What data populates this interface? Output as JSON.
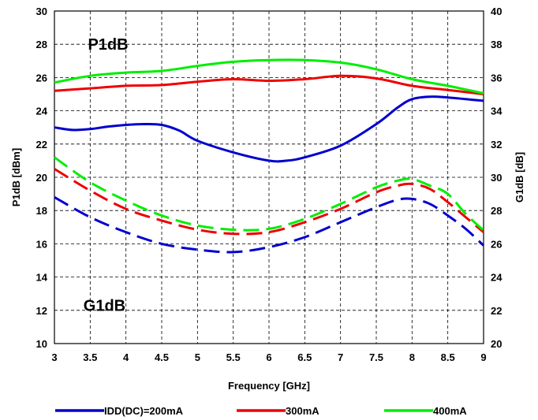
{
  "chart_data": {
    "type": "line",
    "xlabel": "Frequency  [GHz]",
    "ylabel": "P1dB  [dBm]",
    "y2label": "G1dB  [dB]",
    "xlim": [
      3,
      9
    ],
    "ylim": [
      10,
      30
    ],
    "y2lim": [
      20,
      40
    ],
    "grid": true,
    "legend_placement": "bottom",
    "x_ticks": [
      "3",
      "3.5",
      "4",
      "4.5",
      "5",
      "5.5",
      "6",
      "6.5",
      "7",
      "7.5",
      "8",
      "8.5",
      "9"
    ],
    "y_ticks": [
      "10",
      "12",
      "14",
      "16",
      "18",
      "20",
      "22",
      "24",
      "26",
      "28",
      "30"
    ],
    "y2_ticks": [
      "20",
      "22",
      "24",
      "26",
      "28",
      "30",
      "32",
      "34",
      "36",
      "38",
      "40"
    ],
    "annotations": [
      {
        "text": "P1dB",
        "x": 3.75,
        "y": 28.0
      },
      {
        "text": "G1dB",
        "x": 3.7,
        "y": 12.3
      }
    ],
    "legend": [
      {
        "label": "IDD(DC)=200mA",
        "color": "#0000cc"
      },
      {
        "label": "300mA",
        "color": "#ee0000"
      },
      {
        "label": "400mA",
        "color": "#00ee00"
      }
    ],
    "series": [
      {
        "group": "P1dB",
        "axis": "left",
        "style": "solid",
        "color": "#0000cc",
        "x": [
          3,
          3.25,
          3.5,
          3.75,
          4,
          4.25,
          4.5,
          4.75,
          5,
          5.5,
          6,
          6.25,
          6.5,
          7,
          7.5,
          7.8,
          8,
          8.25,
          8.5,
          8.75,
          9
        ],
        "y": [
          23.0,
          22.85,
          22.9,
          23.05,
          23.15,
          23.2,
          23.15,
          22.8,
          22.2,
          21.5,
          21.0,
          21.0,
          21.2,
          21.9,
          23.2,
          24.2,
          24.7,
          24.85,
          24.8,
          24.7,
          24.6
        ]
      },
      {
        "group": "P1dB",
        "axis": "left",
        "style": "solid",
        "color": "#ee0000",
        "x": [
          3,
          3.5,
          4,
          4.5,
          5,
          5.5,
          6,
          6.5,
          7,
          7.5,
          8,
          8.5,
          9
        ],
        "y": [
          25.2,
          25.35,
          25.5,
          25.55,
          25.75,
          25.9,
          25.8,
          25.9,
          26.1,
          25.95,
          25.5,
          25.25,
          25.0
        ]
      },
      {
        "group": "P1dB",
        "axis": "left",
        "style": "solid",
        "color": "#00ee00",
        "x": [
          3,
          3.5,
          4,
          4.5,
          5,
          5.5,
          6,
          6.5,
          7,
          7.5,
          8,
          8.5,
          9
        ],
        "y": [
          25.7,
          26.1,
          26.3,
          26.4,
          26.7,
          26.95,
          27.05,
          27.05,
          26.9,
          26.5,
          25.9,
          25.5,
          25.05
        ]
      },
      {
        "group": "G1dB",
        "axis": "right",
        "style": "dashed",
        "color": "#0000cc",
        "x": [
          3,
          3.5,
          4,
          4.5,
          5,
          5.5,
          6,
          6.5,
          7,
          7.5,
          7.8,
          8,
          8.25,
          8.5,
          8.75,
          9
        ],
        "y": [
          28.8,
          27.6,
          26.7,
          26.0,
          25.65,
          25.5,
          25.8,
          26.4,
          27.3,
          28.2,
          28.65,
          28.7,
          28.4,
          27.7,
          26.9,
          25.9
        ]
      },
      {
        "group": "G1dB",
        "axis": "right",
        "style": "dashed",
        "color": "#ee0000",
        "x": [
          3,
          3.5,
          4,
          4.5,
          5,
          5.5,
          6,
          6.5,
          7,
          7.5,
          7.8,
          8,
          8.25,
          8.5,
          8.75,
          9
        ],
        "y": [
          30.5,
          29.2,
          28.1,
          27.4,
          26.85,
          26.6,
          26.7,
          27.3,
          28.1,
          29.1,
          29.5,
          29.6,
          29.3,
          28.5,
          27.6,
          26.7
        ]
      },
      {
        "group": "G1dB",
        "axis": "right",
        "style": "dashed",
        "color": "#00ee00",
        "x": [
          3,
          3.5,
          4,
          4.5,
          5,
          5.5,
          6,
          6.5,
          7,
          7.5,
          7.8,
          8,
          8.25,
          8.5,
          8.75,
          9
        ],
        "y": [
          31.2,
          29.7,
          28.6,
          27.7,
          27.1,
          26.85,
          26.9,
          27.5,
          28.4,
          29.4,
          29.8,
          29.9,
          29.5,
          29.0,
          27.8,
          26.8
        ]
      }
    ]
  }
}
